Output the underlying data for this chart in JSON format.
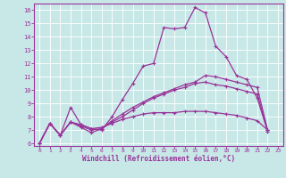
{
  "xlabel": "Windchill (Refroidissement éolien,°C)",
  "xlim": [
    -0.5,
    23.5
  ],
  "ylim": [
    5.8,
    16.5
  ],
  "yticks": [
    6,
    7,
    8,
    9,
    10,
    11,
    12,
    13,
    14,
    15,
    16
  ],
  "xticks": [
    0,
    1,
    2,
    3,
    4,
    5,
    6,
    7,
    8,
    9,
    10,
    11,
    12,
    13,
    14,
    15,
    16,
    17,
    18,
    19,
    20,
    21,
    22,
    23
  ],
  "bg_color": "#c8e8e8",
  "grid_color": "#b0d8d8",
  "line_color": "#993399",
  "line0": [
    6.0,
    7.5,
    6.6,
    8.7,
    7.4,
    7.1,
    7.0,
    8.0,
    9.3,
    10.5,
    11.8,
    12.0,
    14.7,
    14.6,
    14.7,
    16.2,
    15.8,
    13.3,
    12.5,
    11.1,
    10.8,
    9.4,
    6.9
  ],
  "line1": [
    6.0,
    7.5,
    6.6,
    7.6,
    7.4,
    7.1,
    7.2,
    7.5,
    7.8,
    8.0,
    8.2,
    8.3,
    8.3,
    8.3,
    8.4,
    8.4,
    8.4,
    8.3,
    8.2,
    8.1,
    7.9,
    7.7,
    7.0
  ],
  "line2": [
    6.0,
    7.5,
    6.6,
    7.6,
    7.3,
    7.0,
    7.1,
    7.6,
    8.0,
    8.5,
    9.0,
    9.4,
    9.7,
    10.0,
    10.2,
    10.5,
    10.6,
    10.4,
    10.3,
    10.1,
    9.9,
    9.7,
    7.0
  ],
  "line3": [
    6.0,
    7.5,
    6.6,
    7.6,
    7.2,
    6.8,
    7.1,
    7.7,
    8.2,
    8.7,
    9.1,
    9.5,
    9.8,
    10.1,
    10.4,
    10.6,
    11.1,
    11.0,
    10.8,
    10.6,
    10.4,
    10.2,
    7.0
  ]
}
